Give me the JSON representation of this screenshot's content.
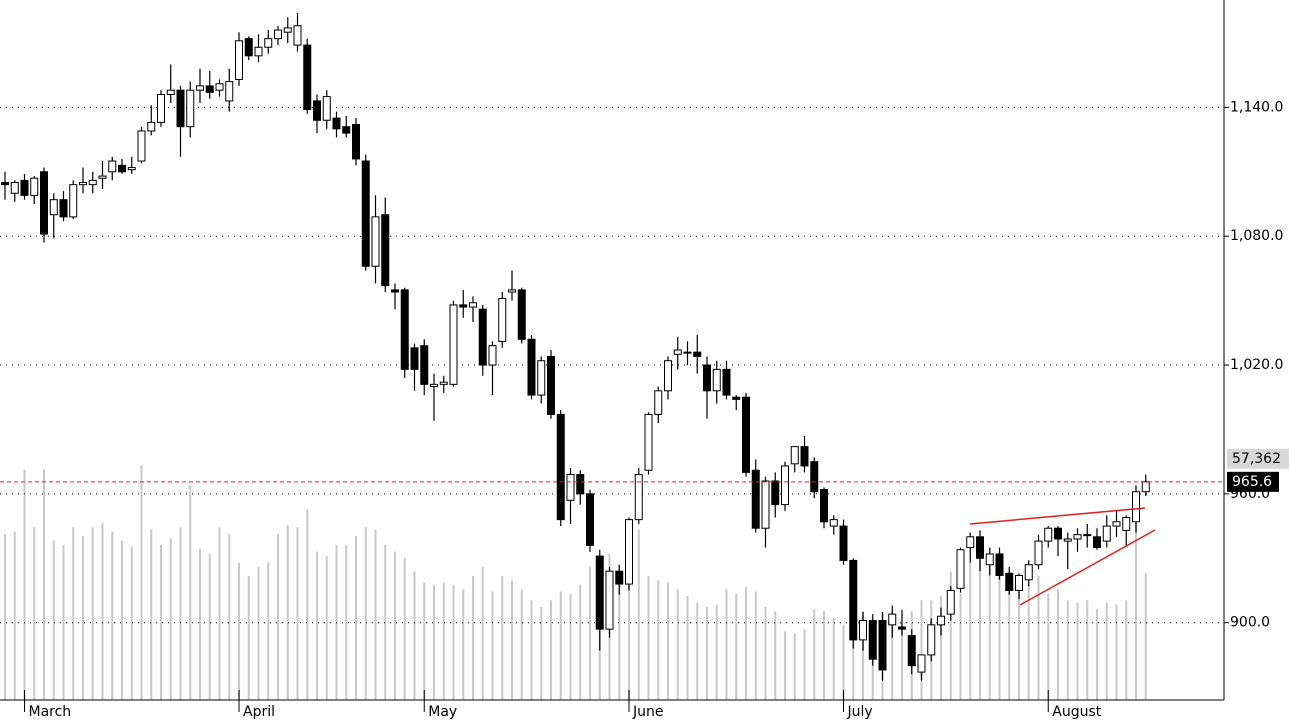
{
  "chart_data": {
    "type": "candlestick",
    "categories": [
      null,
      null,
      "March",
      null,
      null,
      null,
      null,
      null,
      null,
      null,
      null,
      null,
      null,
      null,
      null,
      null,
      null,
      null,
      null,
      null,
      null,
      null,
      null,
      null,
      "April",
      null,
      null,
      null,
      null,
      null,
      null,
      null,
      null,
      null,
      null,
      null,
      null,
      null,
      null,
      null,
      null,
      null,
      null,
      "May",
      null,
      null,
      null,
      null,
      null,
      null,
      null,
      null,
      null,
      null,
      null,
      null,
      null,
      null,
      null,
      null,
      null,
      null,
      null,
      null,
      "June",
      null,
      null,
      null,
      null,
      null,
      null,
      null,
      null,
      null,
      null,
      null,
      null,
      null,
      null,
      null,
      null,
      null,
      null,
      null,
      null,
      null,
      "July",
      null,
      null,
      null,
      null,
      null,
      null,
      null,
      null,
      null,
      null,
      null,
      null,
      null,
      null,
      null,
      null,
      null,
      null,
      null,
      null,
      "August",
      null,
      null,
      null,
      null,
      null,
      null,
      null,
      null,
      null,
      null
    ],
    "open": [
      1105,
      1100,
      1106,
      1099,
      1110,
      1090,
      1097,
      1089,
      1104,
      1104,
      1107,
      1110,
      1113,
      1111,
      1115,
      1129,
      1133,
      1146,
      1148,
      1131,
      1148,
      1150,
      1148,
      1143,
      1153,
      1172,
      1164,
      1168,
      1172,
      1175,
      1169,
      1169,
      1143,
      1134,
      1135,
      1131,
      1132,
      1115,
      1066,
      1090,
      1055,
      1055,
      1028,
      1029,
      1010,
      1011,
      1011,
      1048,
      1047,
      1046,
      1020,
      1031,
      1054,
      1055,
      1032,
      1006,
      1024,
      997,
      957,
      969,
      960,
      931,
      897,
      924,
      918,
      948,
      971,
      997,
      1008,
      1025,
      1026,
      1026,
      1020,
      1008,
      1018,
      1005,
      1005,
      971,
      944,
      966,
      955,
      974,
      982,
      975,
      962,
      945,
      945,
      929,
      892,
      901,
      901,
      899,
      898,
      894,
      877,
      885,
      899,
      904,
      916,
      935,
      940,
      927,
      932,
      923,
      915,
      920,
      927,
      938,
      944,
      938,
      939,
      941,
      940,
      938,
      945,
      943,
      947,
      961
    ],
    "high": [
      1110,
      1106,
      1109,
      1108,
      1112,
      1100,
      1101,
      1106,
      1112,
      1110,
      1115,
      1117,
      1116,
      1117,
      1131,
      1141,
      1148,
      1160,
      1150,
      1152,
      1158,
      1157,
      1153,
      1158,
      1175,
      1173,
      1174,
      1176,
      1178,
      1182,
      1184,
      1172,
      1146,
      1148,
      1138,
      1136,
      1135,
      1118,
      1099,
      1098,
      1058,
      1056,
      1030,
      1032,
      1016,
      1015,
      1050,
      1055,
      1052,
      1048,
      1031,
      1054,
      1064,
      1056,
      1034,
      1024,
      1027,
      999,
      972,
      971,
      962,
      934,
      926,
      927,
      949,
      972,
      998,
      1010,
      1024,
      1033,
      1031,
      1034,
      1024,
      1022,
      1022,
      1006,
      1007,
      976,
      968,
      970,
      975,
      982,
      987,
      977,
      963,
      950,
      948,
      930,
      905,
      904,
      905,
      908,
      906,
      897,
      885,
      902,
      907,
      917,
      935,
      942,
      943,
      935,
      935,
      926,
      923,
      929,
      941,
      945,
      945,
      942,
      944,
      946,
      944,
      950,
      952,
      950,
      964,
      969
    ],
    "low": [
      1097,
      1096,
      1097,
      1095,
      1077,
      1079,
      1087,
      1088,
      1100,
      1100,
      1102,
      1106,
      1109,
      1109,
      1114,
      1127,
      1131,
      1142,
      1117,
      1126,
      1142,
      1144,
      1145,
      1138,
      1150,
      1162,
      1161,
      1165,
      1169,
      1170,
      1166,
      1137,
      1128,
      1130,
      1126,
      1126,
      1113,
      1064,
      1058,
      1054,
      1046,
      1014,
      1008,
      1006,
      994,
      1007,
      1010,
      1042,
      1040,
      1015,
      1006,
      1028,
      1050,
      1030,
      1004,
      1002,
      995,
      945,
      946,
      955,
      933,
      887,
      893,
      913,
      915,
      946,
      969,
      993,
      1004,
      1018,
      1020,
      1016,
      995,
      1002,
      1004,
      999,
      968,
      942,
      935,
      949,
      952,
      970,
      970,
      958,
      944,
      941,
      927,
      888,
      887,
      880,
      873,
      893,
      894,
      876,
      873,
      882,
      894,
      901,
      914,
      928,
      924,
      922,
      920,
      913,
      911,
      917,
      925,
      935,
      931,
      925,
      933,
      935,
      934,
      935,
      940,
      936,
      942,
      959
    ],
    "close": [
      1104,
      1105,
      1099,
      1107,
      1081,
      1097,
      1089,
      1104,
      1105,
      1106,
      1108,
      1115,
      1110,
      1112,
      1129,
      1133,
      1146,
      1148,
      1131,
      1148,
      1150,
      1147,
      1151,
      1152,
      1171,
      1164,
      1168,
      1172,
      1176,
      1177,
      1178,
      1139,
      1134,
      1145,
      1130,
      1128,
      1116,
      1066,
      1089,
      1057,
      1054,
      1018,
      1018,
      1011,
      1011,
      1012,
      1048,
      1047,
      1049,
      1020,
      1029,
      1051,
      1055,
      1032,
      1006,
      1022,
      997,
      948,
      969,
      960,
      936,
      897,
      924,
      918,
      948,
      969,
      997,
      1008,
      1022,
      1027,
      1026,
      1024,
      1008,
      1018,
      1006,
      1004,
      970,
      944,
      966,
      955,
      973,
      982,
      973,
      961,
      947,
      948,
      929,
      892,
      901,
      883,
      878,
      904,
      897,
      880,
      885,
      899,
      903,
      915,
      934,
      940,
      930,
      932,
      922,
      915,
      922,
      927,
      938,
      944,
      939,
      939,
      941,
      941,
      935,
      945,
      947,
      949,
      961,
      965.6
    ],
    "volume": [
      75000,
      76000,
      104000,
      78000,
      104000,
      72000,
      70000,
      78000,
      74000,
      78000,
      80000,
      76000,
      72000,
      69000,
      106000,
      77000,
      70000,
      73000,
      78000,
      97000,
      68000,
      66000,
      78000,
      75000,
      62000,
      56000,
      60000,
      62000,
      75000,
      79000,
      78000,
      86000,
      67000,
      65000,
      70000,
      70000,
      74000,
      78000,
      77000,
      70000,
      67000,
      64000,
      58000,
      53000,
      52000,
      53000,
      52000,
      50000,
      56000,
      60000,
      49000,
      56000,
      54000,
      50000,
      45000,
      42000,
      45000,
      49000,
      48000,
      52000,
      60000,
      60000,
      66000,
      58000,
      74000,
      77000,
      56000,
      54000,
      53000,
      50000,
      47000,
      44000,
      42000,
      43000,
      50000,
      48000,
      51000,
      49000,
      42000,
      40000,
      31000,
      30000,
      32000,
      41000,
      40000,
      37000,
      34000,
      48000,
      40000,
      36000,
      39000,
      40000,
      35000,
      40000,
      45000,
      45000,
      47000,
      58000,
      48000,
      62000,
      63000,
      60000,
      59000,
      58000,
      54000,
      52000,
      56000,
      48000,
      50000,
      45000,
      44000,
      45000,
      41000,
      44000,
      43000,
      45000,
      88000,
      57362
    ],
    "ylim": [
      864,
      1190
    ],
    "yticks": [
      {
        "value": 900,
        "label": "900.0"
      },
      {
        "value": 960,
        "label": "960.0"
      },
      {
        "value": 1020,
        "label": "1,020.0"
      },
      {
        "value": 1080,
        "label": "1,080.0"
      },
      {
        "value": 1140,
        "label": "1,140.0"
      }
    ],
    "volume_lim": [
      0,
      316000
    ],
    "grid": true,
    "up_color": "#ffffff",
    "down_color": "#000000",
    "volume_color": "#c8c8c8",
    "last_price_label": "965.6",
    "last_volume_label": "57,362"
  }
}
